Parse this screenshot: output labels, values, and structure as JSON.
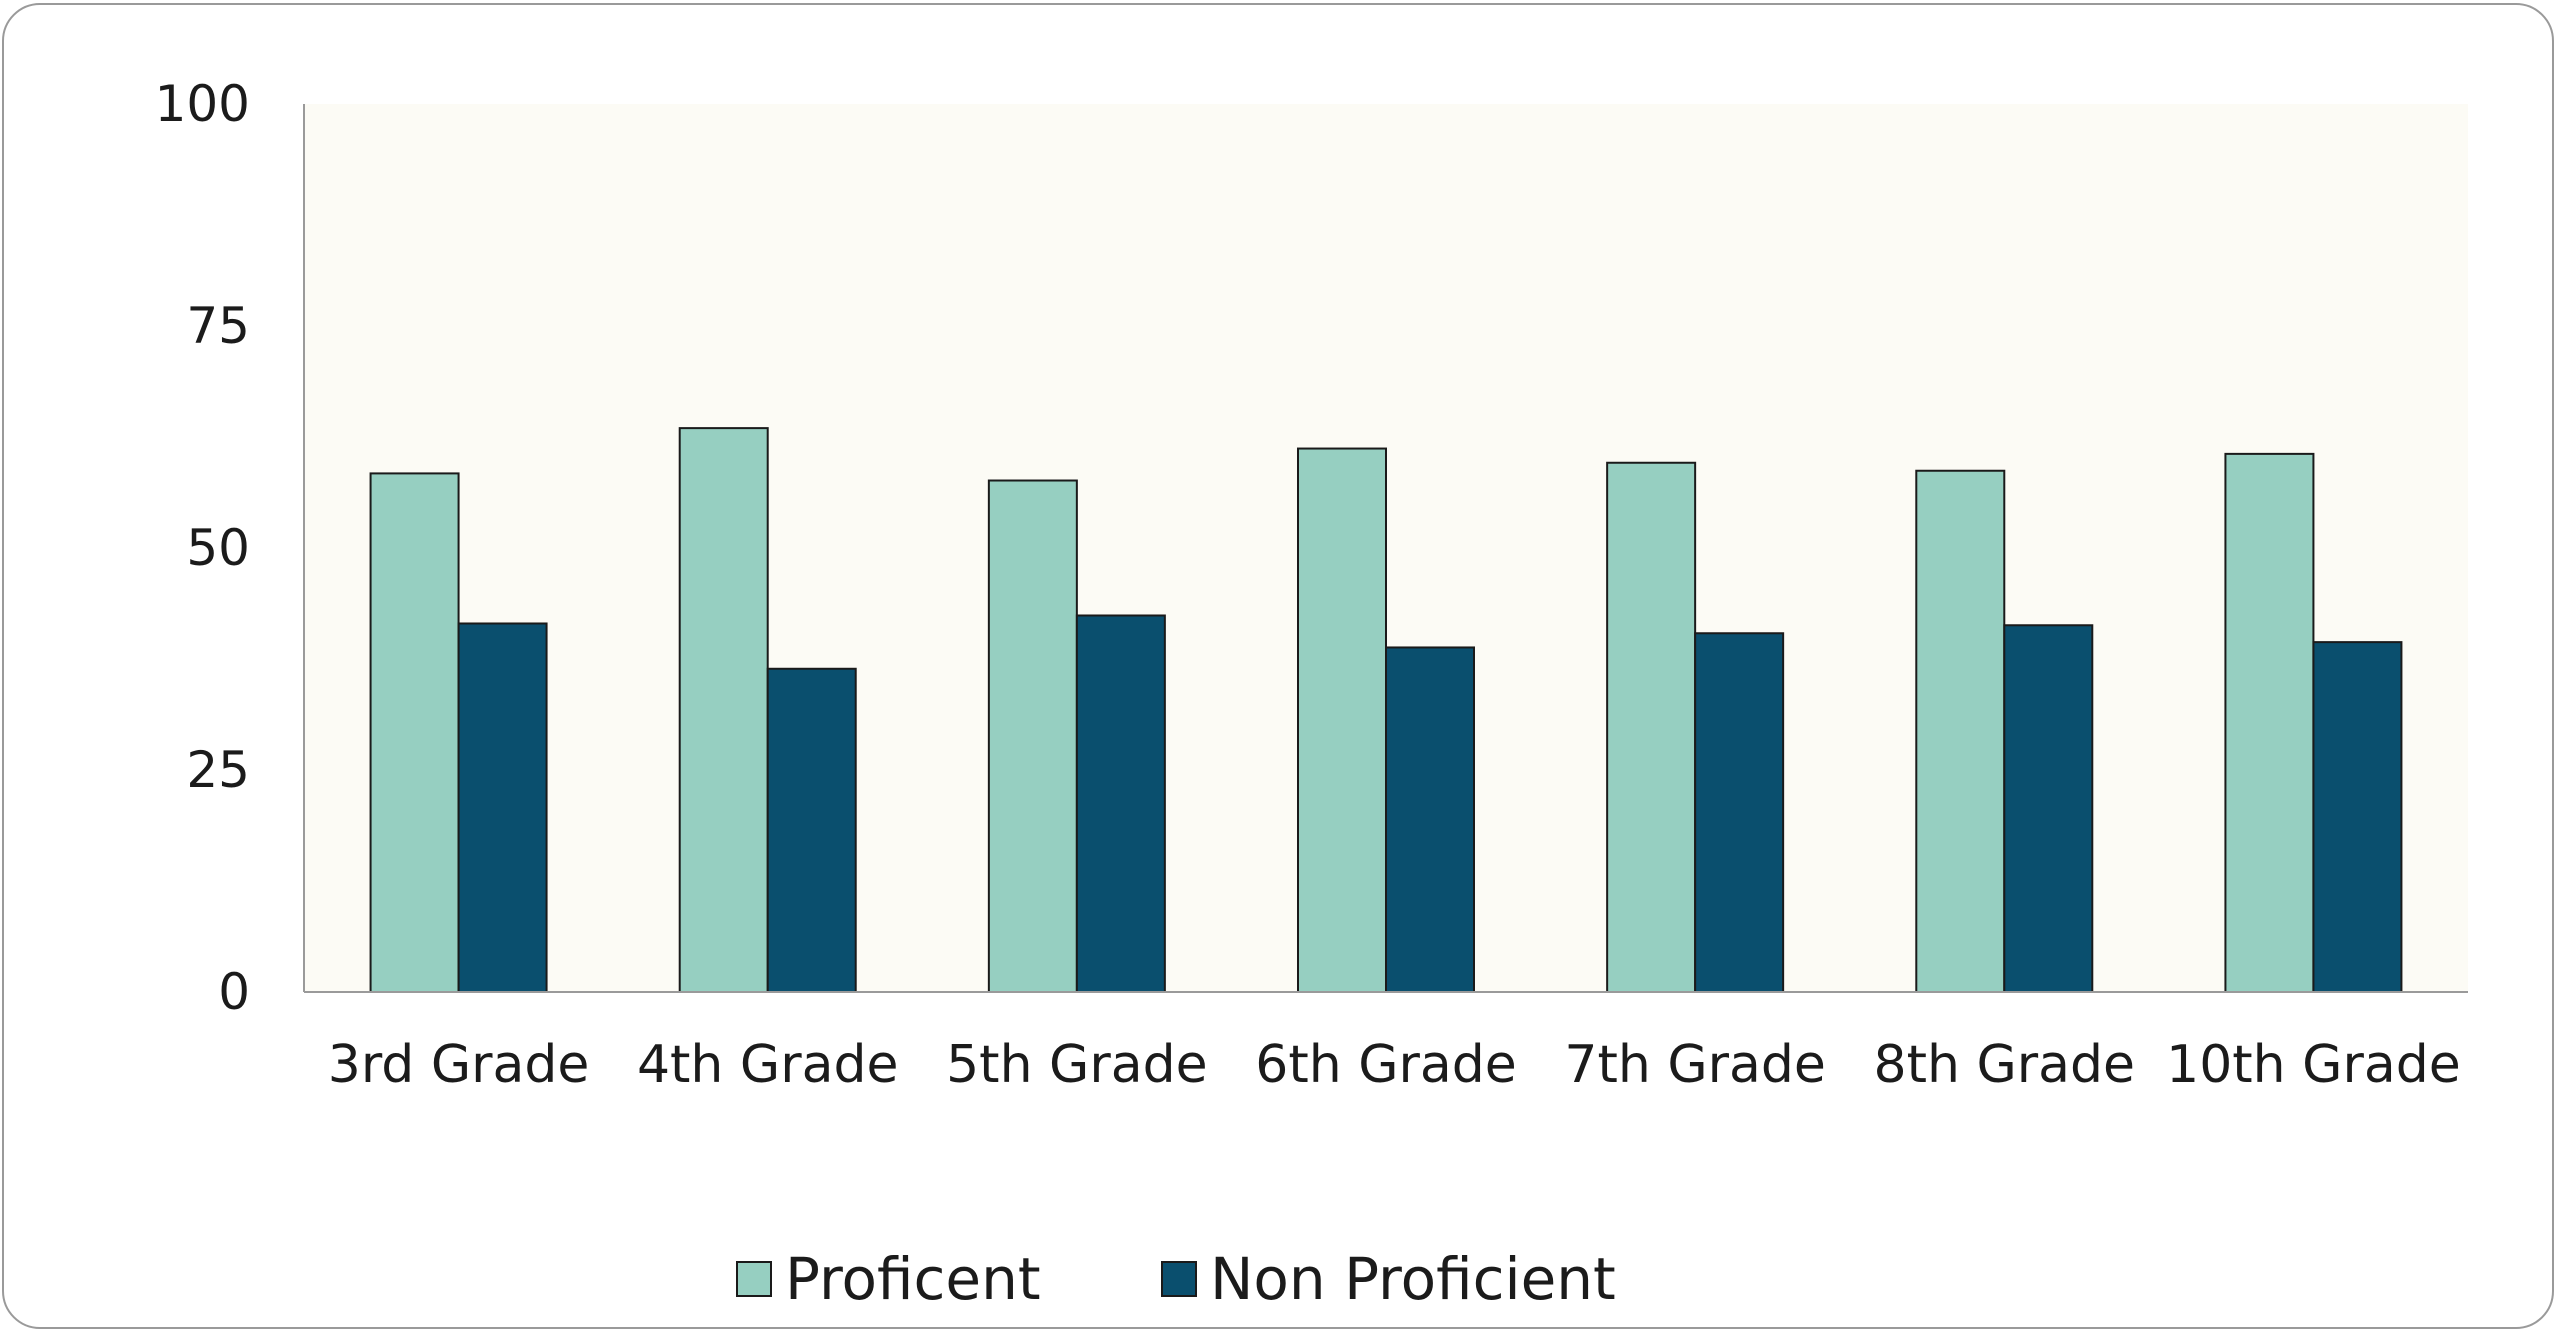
{
  "chart_data": {
    "type": "bar",
    "title": "",
    "xlabel": "",
    "ylabel": "",
    "categories": [
      "3rd Grade",
      "4th Grade",
      "5th Grade",
      "6th Grade",
      "7th Grade",
      "8th Grade",
      "10th Grade"
    ],
    "series": [
      {
        "name": "Proficent",
        "values": [
          58.4,
          63.5,
          57.6,
          61.2,
          59.6,
          58.7,
          60.6
        ],
        "color": "#96cfc1"
      },
      {
        "name": "Non Proficient",
        "values": [
          41.5,
          36.4,
          42.4,
          38.8,
          40.4,
          41.3,
          39.4
        ],
        "color": "#0a4f6e"
      }
    ],
    "ylim": [
      0,
      100
    ],
    "yticks": [
      0,
      25,
      50,
      75,
      100
    ],
    "grid": false,
    "plot_background": "#fcfbf5",
    "bar_stroke": "#1a1a1a",
    "legend_position": "bottom-center"
  }
}
